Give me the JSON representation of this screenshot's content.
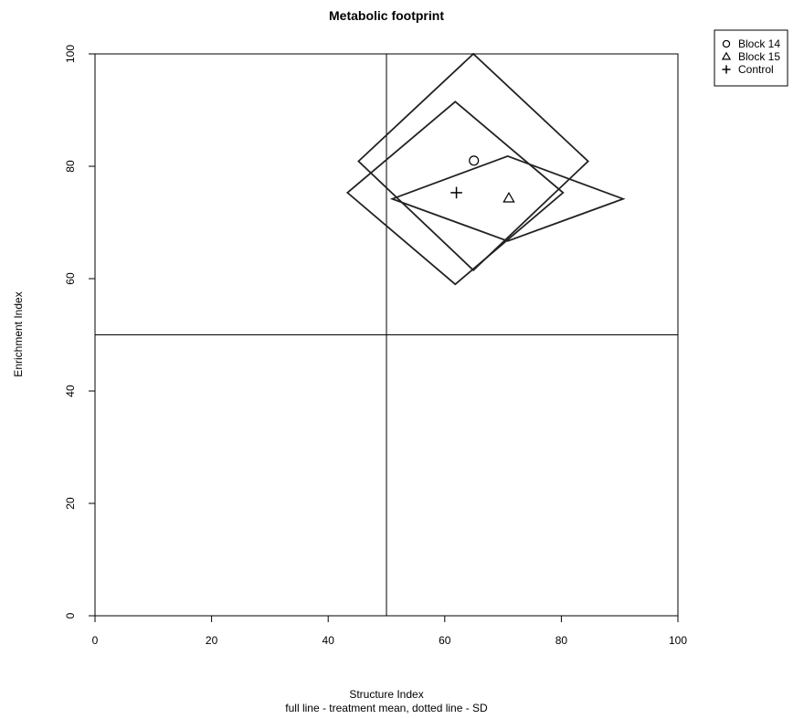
{
  "chart_data": {
    "type": "scatter",
    "title": "Metabolic footprint",
    "xlabel": "Structure Index",
    "subtitle": "full line - treatment mean, dotted line - SD",
    "ylabel": "Enrichment Index",
    "xlim": [
      0,
      100
    ],
    "ylim": [
      0,
      100
    ],
    "xticks": [
      0,
      20,
      40,
      60,
      80,
      100
    ],
    "yticks": [
      0,
      20,
      40,
      60,
      80,
      100
    ],
    "reference_lines": {
      "x": 50,
      "y": 50
    },
    "legend_position": "top-right, outside plot",
    "series": [
      {
        "name": "Block 14",
        "marker": "circle",
        "point": {
          "x": 65,
          "y": 81
        },
        "footprint": [
          [
            45.2,
            80.9
          ],
          [
            64.9,
            100.0
          ],
          [
            84.6,
            80.9
          ],
          [
            64.9,
            61.5
          ]
        ]
      },
      {
        "name": "Block 15",
        "marker": "triangle",
        "point": {
          "x": 71,
          "y": 74.3
        },
        "footprint": [
          [
            51.0,
            74.2
          ],
          [
            70.8,
            81.8
          ],
          [
            90.6,
            74.2
          ],
          [
            70.8,
            66.7
          ]
        ]
      },
      {
        "name": "Control",
        "marker": "plus",
        "point": {
          "x": 62,
          "y": 75.3
        },
        "footprint": [
          [
            43.3,
            75.3
          ],
          [
            61.8,
            91.5
          ],
          [
            80.3,
            75.3
          ],
          [
            61.8,
            59.0
          ]
        ]
      }
    ]
  }
}
